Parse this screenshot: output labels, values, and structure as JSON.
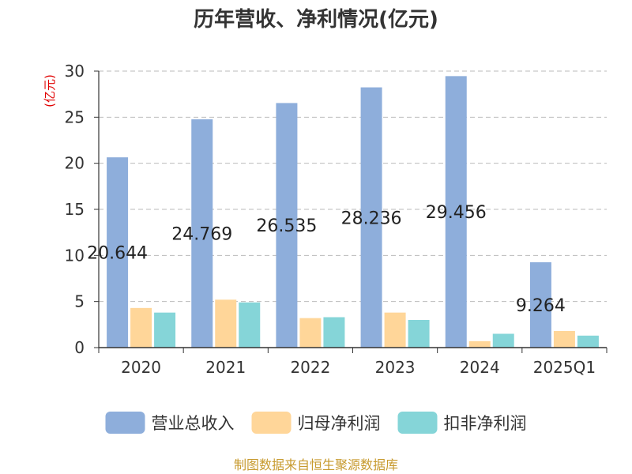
{
  "chart_data": {
    "type": "bar",
    "title": "历年营收、净利情况(亿元)",
    "ylabel": "(亿元)",
    "ylim": [
      0,
      30
    ],
    "yticks": [
      0,
      5,
      10,
      15,
      20,
      25,
      30
    ],
    "grid": true,
    "legend_position": "bottom",
    "categories": [
      "2020",
      "2021",
      "2022",
      "2023",
      "2024",
      "2025Q1"
    ],
    "series": [
      {
        "name": "营业总收入",
        "color": "#8eaedb",
        "values": [
          20.644,
          24.769,
          26.535,
          28.236,
          29.456,
          9.264
        ],
        "labels": [
          "20.644",
          "24.769",
          "26.535",
          "28.236",
          "29.456",
          "9.264"
        ]
      },
      {
        "name": "归母净利润",
        "color": "#ffd699",
        "values": [
          4.3,
          5.2,
          3.2,
          3.8,
          0.7,
          1.8
        ]
      },
      {
        "name": "扣非净利润",
        "color": "#85d5d8",
        "values": [
          3.8,
          4.9,
          3.3,
          3.0,
          1.5,
          1.3
        ]
      }
    ],
    "source": "制图数据来自恒生聚源数据库"
  }
}
